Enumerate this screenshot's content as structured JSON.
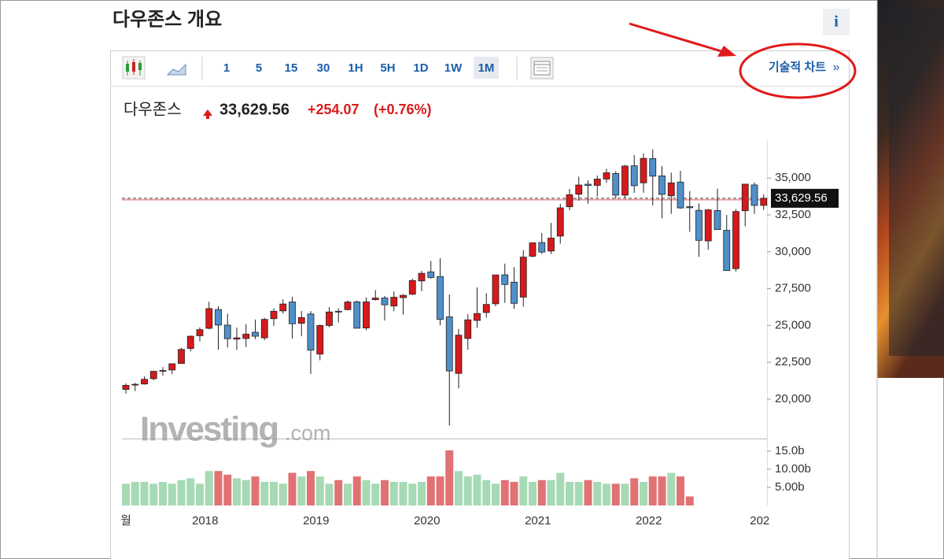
{
  "header": {
    "title": "다우존스 개요",
    "info": "i"
  },
  "toolbar": {
    "intervals": [
      "1",
      "5",
      "15",
      "30",
      "1H",
      "5H",
      "1D",
      "1W",
      "1M"
    ],
    "active": "1M",
    "link": "기술적 차트",
    "link_arrow": "»"
  },
  "quote": {
    "name": "다우존스",
    "price": "33,629.56",
    "change": "+254.07",
    "change_pct": "(+0.76%)"
  },
  "chart_data": {
    "type": "candlestick",
    "categories": [
      "월",
      null,
      null,
      null,
      null,
      null,
      null,
      null,
      null,
      "2018",
      null,
      null,
      null,
      null,
      null,
      null,
      null,
      null,
      null,
      null,
      null,
      "2019",
      null,
      null,
      null,
      null,
      null,
      null,
      null,
      null,
      null,
      null,
      null,
      "2020",
      null,
      null,
      null,
      null,
      null,
      null,
      null,
      null,
      null,
      null,
      null,
      "2021",
      null,
      null,
      null,
      null,
      null,
      null,
      null,
      null,
      null,
      null,
      null,
      "2022",
      null,
      null,
      null,
      null,
      null,
      null,
      null,
      null,
      null,
      null,
      null,
      "202"
    ],
    "open": [
      20665,
      20962,
      21030,
      21392,
      21923,
      21982,
      22423,
      23442,
      24305,
      24809,
      26084,
      25025,
      24076,
      24117,
      24541,
      24161,
      25461,
      25991,
      26598,
      25152,
      25779,
      23058,
      24999,
      25965,
      26075,
      26605,
      24830,
      26755,
      26864,
      26324,
      26887,
      27124,
      28024,
      28639,
      28320,
      25590,
      21750,
      24120,
      25342,
      25880,
      26471,
      28440,
      27940,
      26925,
      29697,
      30627,
      30054,
      31065,
      33054,
      33904,
      34584,
      34507,
      34935,
      35312,
      33844,
      35833,
      34678,
      36322,
      35150,
      33795,
      34730,
      33061,
      32813,
      30737,
      32798,
      31454,
      28855,
      32785,
      34534,
      33149
    ],
    "high": [
      21070,
      21112,
      21535,
      21930,
      22180,
      22420,
      23485,
      24327,
      24876,
      26617,
      26306,
      25800,
      24858,
      25086,
      25402,
      25520,
      26167,
      26770,
      26951,
      25980,
      25980,
      25075,
      26241,
      26155,
      26696,
      26689,
      26907,
      27398,
      27006,
      27307,
      27122,
      28175,
      28702,
      29374,
      29568,
      27102,
      24764,
      25758,
      27580,
      27195,
      28431,
      29199,
      28958,
      30117,
      30637,
      31272,
      31961,
      33259,
      34256,
      35091,
      34850,
      35171,
      35631,
      35467,
      35892,
      36565,
      36679,
      36952,
      35824,
      35372,
      35492,
      34117,
      33272,
      32910,
      34281,
      32504,
      32889,
      34590,
      34712,
      33900
    ],
    "low": [
      20380,
      20553,
      20990,
      21280,
      21600,
      21710,
      22416,
      23242,
      23922,
      24741,
      23360,
      23509,
      23345,
      23531,
      24077,
      23997,
      24965,
      25802,
      24122,
      24268,
      21713,
      22638,
      24883,
      25208,
      26032,
      24811,
      24680,
      26694,
      25339,
      25979,
      25744,
      27063,
      27325,
      28169,
      25017,
      18214,
      20735,
      23361,
      24843,
      25523,
      26301,
      26537,
      26143,
      26278,
      29626,
      29856,
      29853,
      30547,
      32812,
      33474,
      33271,
      33742,
      34690,
      33614,
      33613,
      34006,
      34006,
      33150,
      32272,
      32578,
      32913,
      31353,
      29653,
      30143,
      31548,
      28715,
      28660,
      31727,
      32573,
      32850
    ],
    "close": [
      20940,
      21009,
      21350,
      21891,
      21948,
      22405,
      23377,
      24272,
      24719,
      26149,
      25029,
      24103,
      24163,
      24416,
      24271,
      25415,
      25965,
      26458,
      25116,
      25538,
      23327,
      24999,
      25916,
      25929,
      26593,
      24815,
      26600,
      26864,
      26403,
      26917,
      27046,
      28051,
      28538,
      28256,
      25409,
      21917,
      24346,
      25383,
      25813,
      26428,
      28430,
      27782,
      26502,
      29639,
      30606,
      29983,
      30932,
      32981,
      33875,
      34529,
      34503,
      34935,
      35361,
      33844,
      35820,
      34484,
      36338,
      35132,
      33893,
      34678,
      32977,
      32990,
      30775,
      32845,
      31510,
      28725,
      32733,
      34590,
      33147,
      33630
    ],
    "volume": [
      6,
      6.5,
      6.5,
      6,
      6.5,
      6,
      7,
      7.5,
      6,
      9.5,
      9.5,
      8.5,
      7.5,
      7,
      8,
      6.5,
      6.5,
      6,
      9,
      8,
      9.5,
      8,
      6,
      7,
      6,
      8,
      7,
      6,
      7,
      6.5,
      6.5,
      6,
      6.5,
      8,
      8,
      15.2,
      9.5,
      8,
      8.5,
      7,
      6,
      7,
      6.5,
      8,
      6.5,
      7,
      7,
      9,
      6.5,
      6.5,
      7,
      6.5,
      6,
      6,
      6,
      7.5,
      6.5,
      8,
      8,
      9,
      8,
      2.5,
      null,
      null,
      null,
      null,
      null,
      null,
      null,
      null
    ],
    "ylim": [
      17330,
      37575
    ],
    "yticks": [
      {
        "value": 20000,
        "label": "20,000"
      },
      {
        "value": 22500,
        "label": "22,500"
      },
      {
        "value": 25000,
        "label": "25,000"
      },
      {
        "value": 27500,
        "label": "27,500"
      },
      {
        "value": 30000,
        "label": "30,000"
      },
      {
        "value": 32500,
        "label": "32,500"
      },
      {
        "value": 35000,
        "label": "35,000"
      }
    ],
    "volume_lim": [
      0,
      17.8
    ],
    "volume_ticks": [
      {
        "value": 5,
        "label": "5.00b"
      },
      {
        "value": 10,
        "label": "10.00b"
      },
      {
        "value": 15,
        "label": "15.0b"
      }
    ],
    "last_price": {
      "value": 33629.56,
      "label": "33,629.56"
    },
    "up_color": "#d7191c",
    "down_color": "#4f8fca",
    "volume_up_color": "#a6dab4",
    "volume_down_color": "#e07274",
    "watermark": {
      "brand": "Investing",
      "suffix": ".com"
    }
  }
}
